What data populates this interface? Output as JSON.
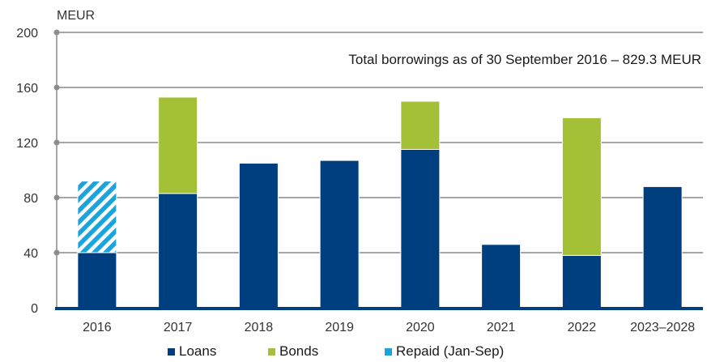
{
  "chart_data": {
    "type": "bar",
    "stacked": true,
    "unit_label": "MEUR",
    "annotation": "Total borrowings as of 30 September 2016 – 829.3 MEUR",
    "categories": [
      "2016",
      "2017",
      "2018",
      "2019",
      "2020",
      "2021",
      "2022",
      "2023–2028"
    ],
    "ylim": [
      0,
      200
    ],
    "yticks": [
      0,
      40,
      80,
      120,
      160,
      200
    ],
    "grid": true,
    "legend_position": "bottom",
    "series": [
      {
        "name": "Loans",
        "color": "#003f7f",
        "values": [
          40,
          83,
          105,
          107,
          115,
          46,
          38,
          88
        ]
      },
      {
        "name": "Bonds",
        "color": "#a3c037",
        "values": [
          0,
          70,
          0,
          0,
          35,
          0,
          100,
          0
        ]
      },
      {
        "name": "Repaid (Jan-Sep)",
        "color": "#1aa3dc",
        "pattern": "hatched",
        "values": [
          52,
          0,
          0,
          0,
          0,
          0,
          0,
          0
        ]
      }
    ]
  }
}
